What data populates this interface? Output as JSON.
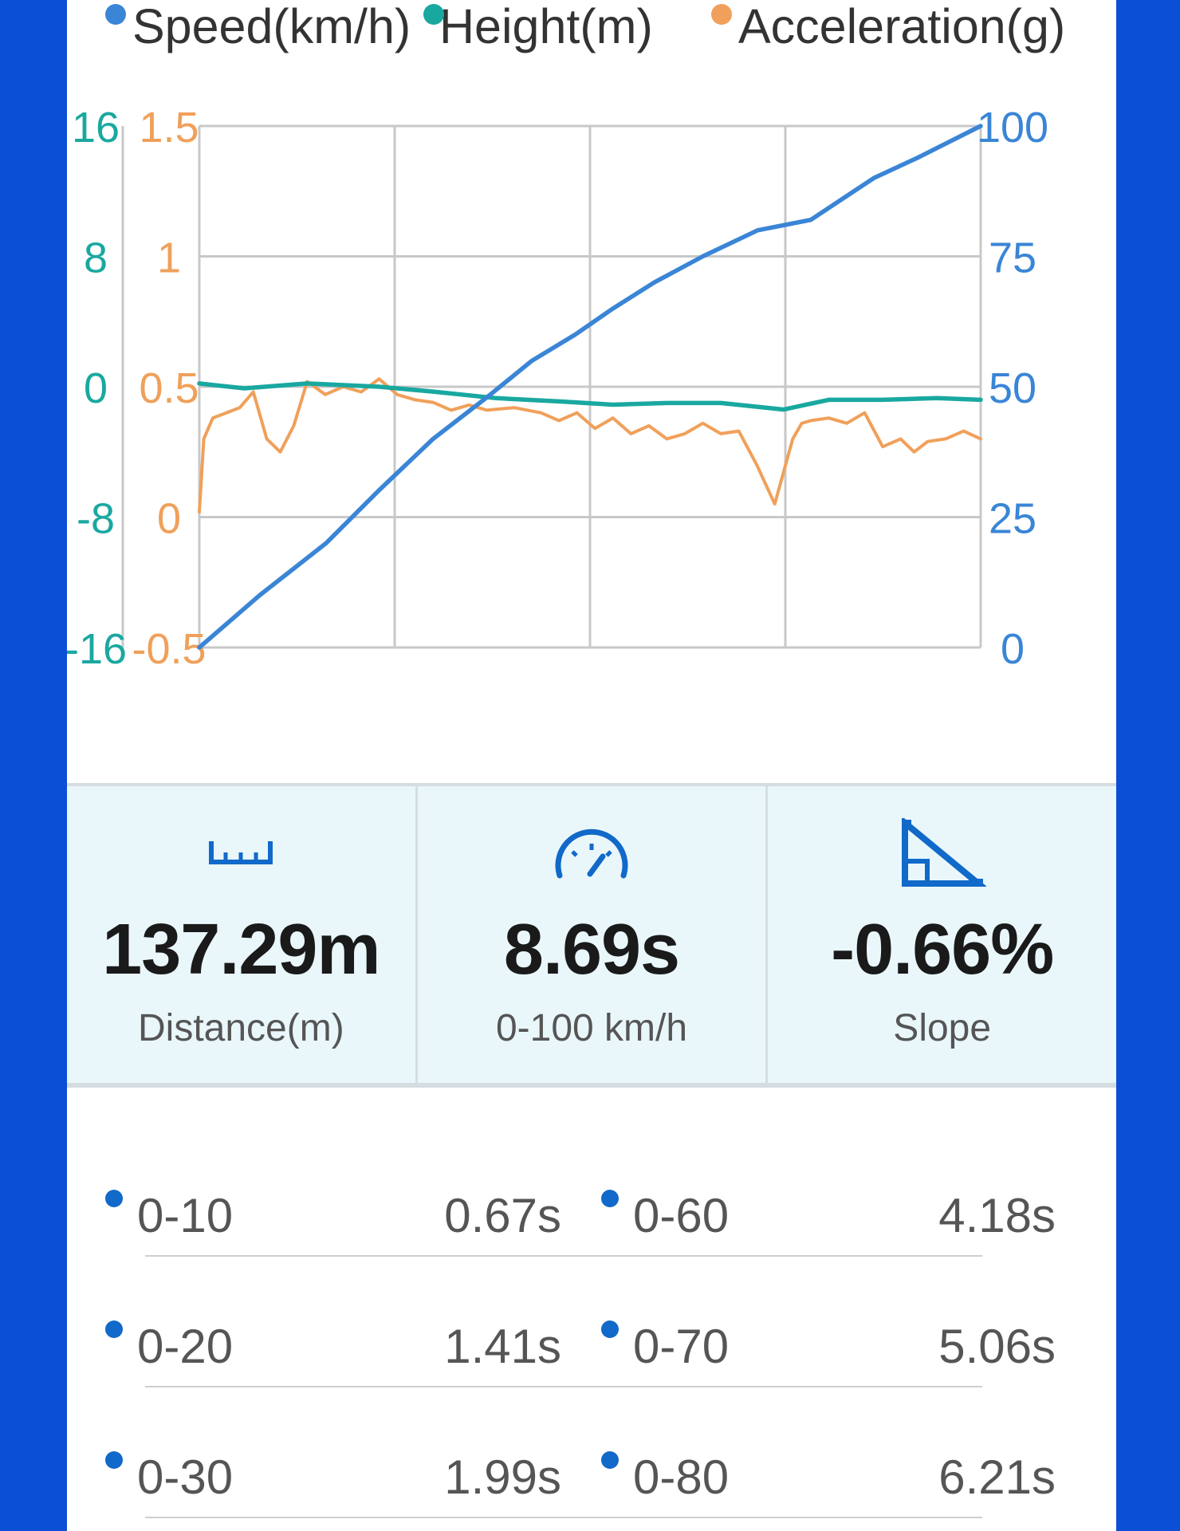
{
  "legend": [
    {
      "label": "Speed(km/h)",
      "color": "#3a85d6"
    },
    {
      "label": "Height(m)",
      "color": "#19a8a0"
    },
    {
      "label": "Acceleration(g)",
      "color": "#f0a05a"
    }
  ],
  "chart_data": {
    "type": "line",
    "title": "",
    "xlabel": "",
    "axes": {
      "height_left": {
        "ticks": [
          "16",
          "8",
          "0",
          "-8",
          "-16"
        ],
        "ylim": [
          -16,
          16
        ],
        "color": "#19a8a0"
      },
      "accel_left": {
        "ticks": [
          "1.5",
          "1",
          "0.5",
          "0",
          "-0.5"
        ],
        "ylim": [
          -0.5,
          1.5
        ],
        "color": "#f0a05a"
      },
      "speed_right": {
        "ticks": [
          "100",
          "75",
          "50",
          "25",
          "0"
        ],
        "ylim": [
          0,
          100
        ],
        "color": "#3a85d6"
      }
    },
    "x_range": [
      0,
      8.69
    ],
    "grid": true,
    "legend_position": "top",
    "series": [
      {
        "name": "Speed(km/h)",
        "axis": "speed_right",
        "color": "#3a85d6",
        "x": [
          0,
          0.67,
          1.41,
          1.99,
          2.6,
          3.2,
          3.7,
          4.18,
          4.6,
          5.06,
          5.6,
          6.21,
          6.8,
          7.5,
          8.0,
          8.69
        ],
        "y": [
          0,
          10,
          20,
          30,
          40,
          48,
          55,
          60,
          65,
          70,
          75,
          80,
          82,
          90,
          94,
          100
        ]
      },
      {
        "name": "Height(m)",
        "axis": "height_left",
        "color": "#19a8a0",
        "x": [
          0,
          0.5,
          1.2,
          2.0,
          2.6,
          3.3,
          4.0,
          4.6,
          5.2,
          5.8,
          6.5,
          7.0,
          7.6,
          8.2,
          8.69
        ],
        "y": [
          0.2,
          -0.1,
          0.2,
          0.0,
          -0.3,
          -0.7,
          -0.9,
          -1.1,
          -1.0,
          -1.0,
          -1.4,
          -0.8,
          -0.8,
          -0.7,
          -0.8
        ]
      },
      {
        "name": "Acceleration(g)",
        "axis": "accel_left",
        "color": "#f0a05a",
        "x": [
          0,
          0.05,
          0.15,
          0.3,
          0.45,
          0.6,
          0.75,
          0.9,
          1.05,
          1.2,
          1.4,
          1.6,
          1.8,
          2.0,
          2.2,
          2.4,
          2.6,
          2.8,
          3.0,
          3.2,
          3.5,
          3.8,
          4.0,
          4.2,
          4.4,
          4.6,
          4.8,
          5.0,
          5.2,
          5.4,
          5.6,
          5.8,
          6.0,
          6.2,
          6.4,
          6.6,
          6.7,
          6.8,
          7.0,
          7.2,
          7.4,
          7.6,
          7.8,
          7.95,
          8.1,
          8.3,
          8.5,
          8.69
        ],
        "y": [
          0.02,
          0.3,
          0.38,
          0.4,
          0.42,
          0.48,
          0.3,
          0.25,
          0.35,
          0.52,
          0.47,
          0.5,
          0.48,
          0.53,
          0.47,
          0.45,
          0.44,
          0.41,
          0.43,
          0.41,
          0.42,
          0.4,
          0.37,
          0.4,
          0.34,
          0.38,
          0.32,
          0.35,
          0.3,
          0.32,
          0.36,
          0.32,
          0.33,
          0.2,
          0.05,
          0.3,
          0.36,
          0.37,
          0.38,
          0.36,
          0.4,
          0.27,
          0.3,
          0.25,
          0.29,
          0.3,
          0.33,
          0.3
        ]
      }
    ]
  },
  "summary": [
    {
      "icon": "ruler-icon",
      "value": "137.29m",
      "label": "Distance(m)"
    },
    {
      "icon": "speedometer-icon",
      "value": "8.69s",
      "label": "0-100 km/h"
    },
    {
      "icon": "slope-triangle-icon",
      "value": "-0.66%",
      "label": "Slope"
    }
  ],
  "splits": [
    {
      "left": {
        "label": "0-10",
        "value": "0.67s"
      },
      "right": {
        "label": "0-60",
        "value": "4.18s"
      }
    },
    {
      "left": {
        "label": "0-20",
        "value": "1.41s"
      },
      "right": {
        "label": "0-70",
        "value": "5.06s"
      }
    },
    {
      "left": {
        "label": "0-30",
        "value": "1.99s"
      },
      "right": {
        "label": "0-80",
        "value": "6.21s"
      }
    }
  ]
}
